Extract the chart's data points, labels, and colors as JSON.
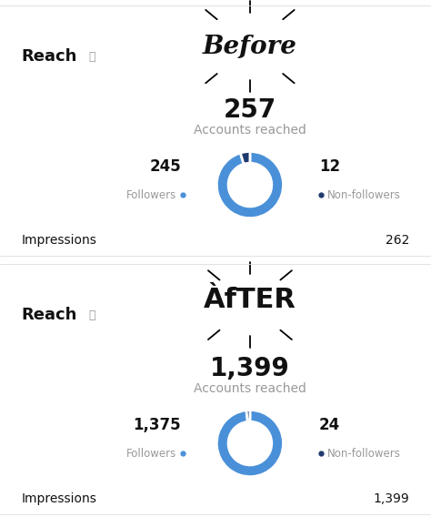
{
  "bg_color": "#ffffff",
  "divider_color": "#dddddd",
  "before": {
    "total": "257",
    "accounts_reached": "Accounts reached",
    "followers_count": "245",
    "non_followers_count": "12",
    "followers_value": 245,
    "non_followers_value": 12,
    "impressions_label": "Impressions",
    "impressions_value": "262"
  },
  "after": {
    "total": "1,399",
    "accounts_reached": "Accounts reached",
    "followers_count": "1,375",
    "non_followers_count": "24",
    "followers_value": 1375,
    "non_followers_value": 24,
    "impressions_label": "Impressions",
    "impressions_value": "1,399"
  },
  "donut_color_followers": "#4a90d9",
  "donut_color_non_followers": "#1f3a6e",
  "text_dark": "#111111",
  "text_gray": "#999999",
  "reach_size": 13,
  "total_size": 20,
  "accounts_size": 10,
  "count_size": 12,
  "label_size": 8.5,
  "impressions_size": 10,
  "starburst_rays_before": 10,
  "starburst_rays_after": 10
}
